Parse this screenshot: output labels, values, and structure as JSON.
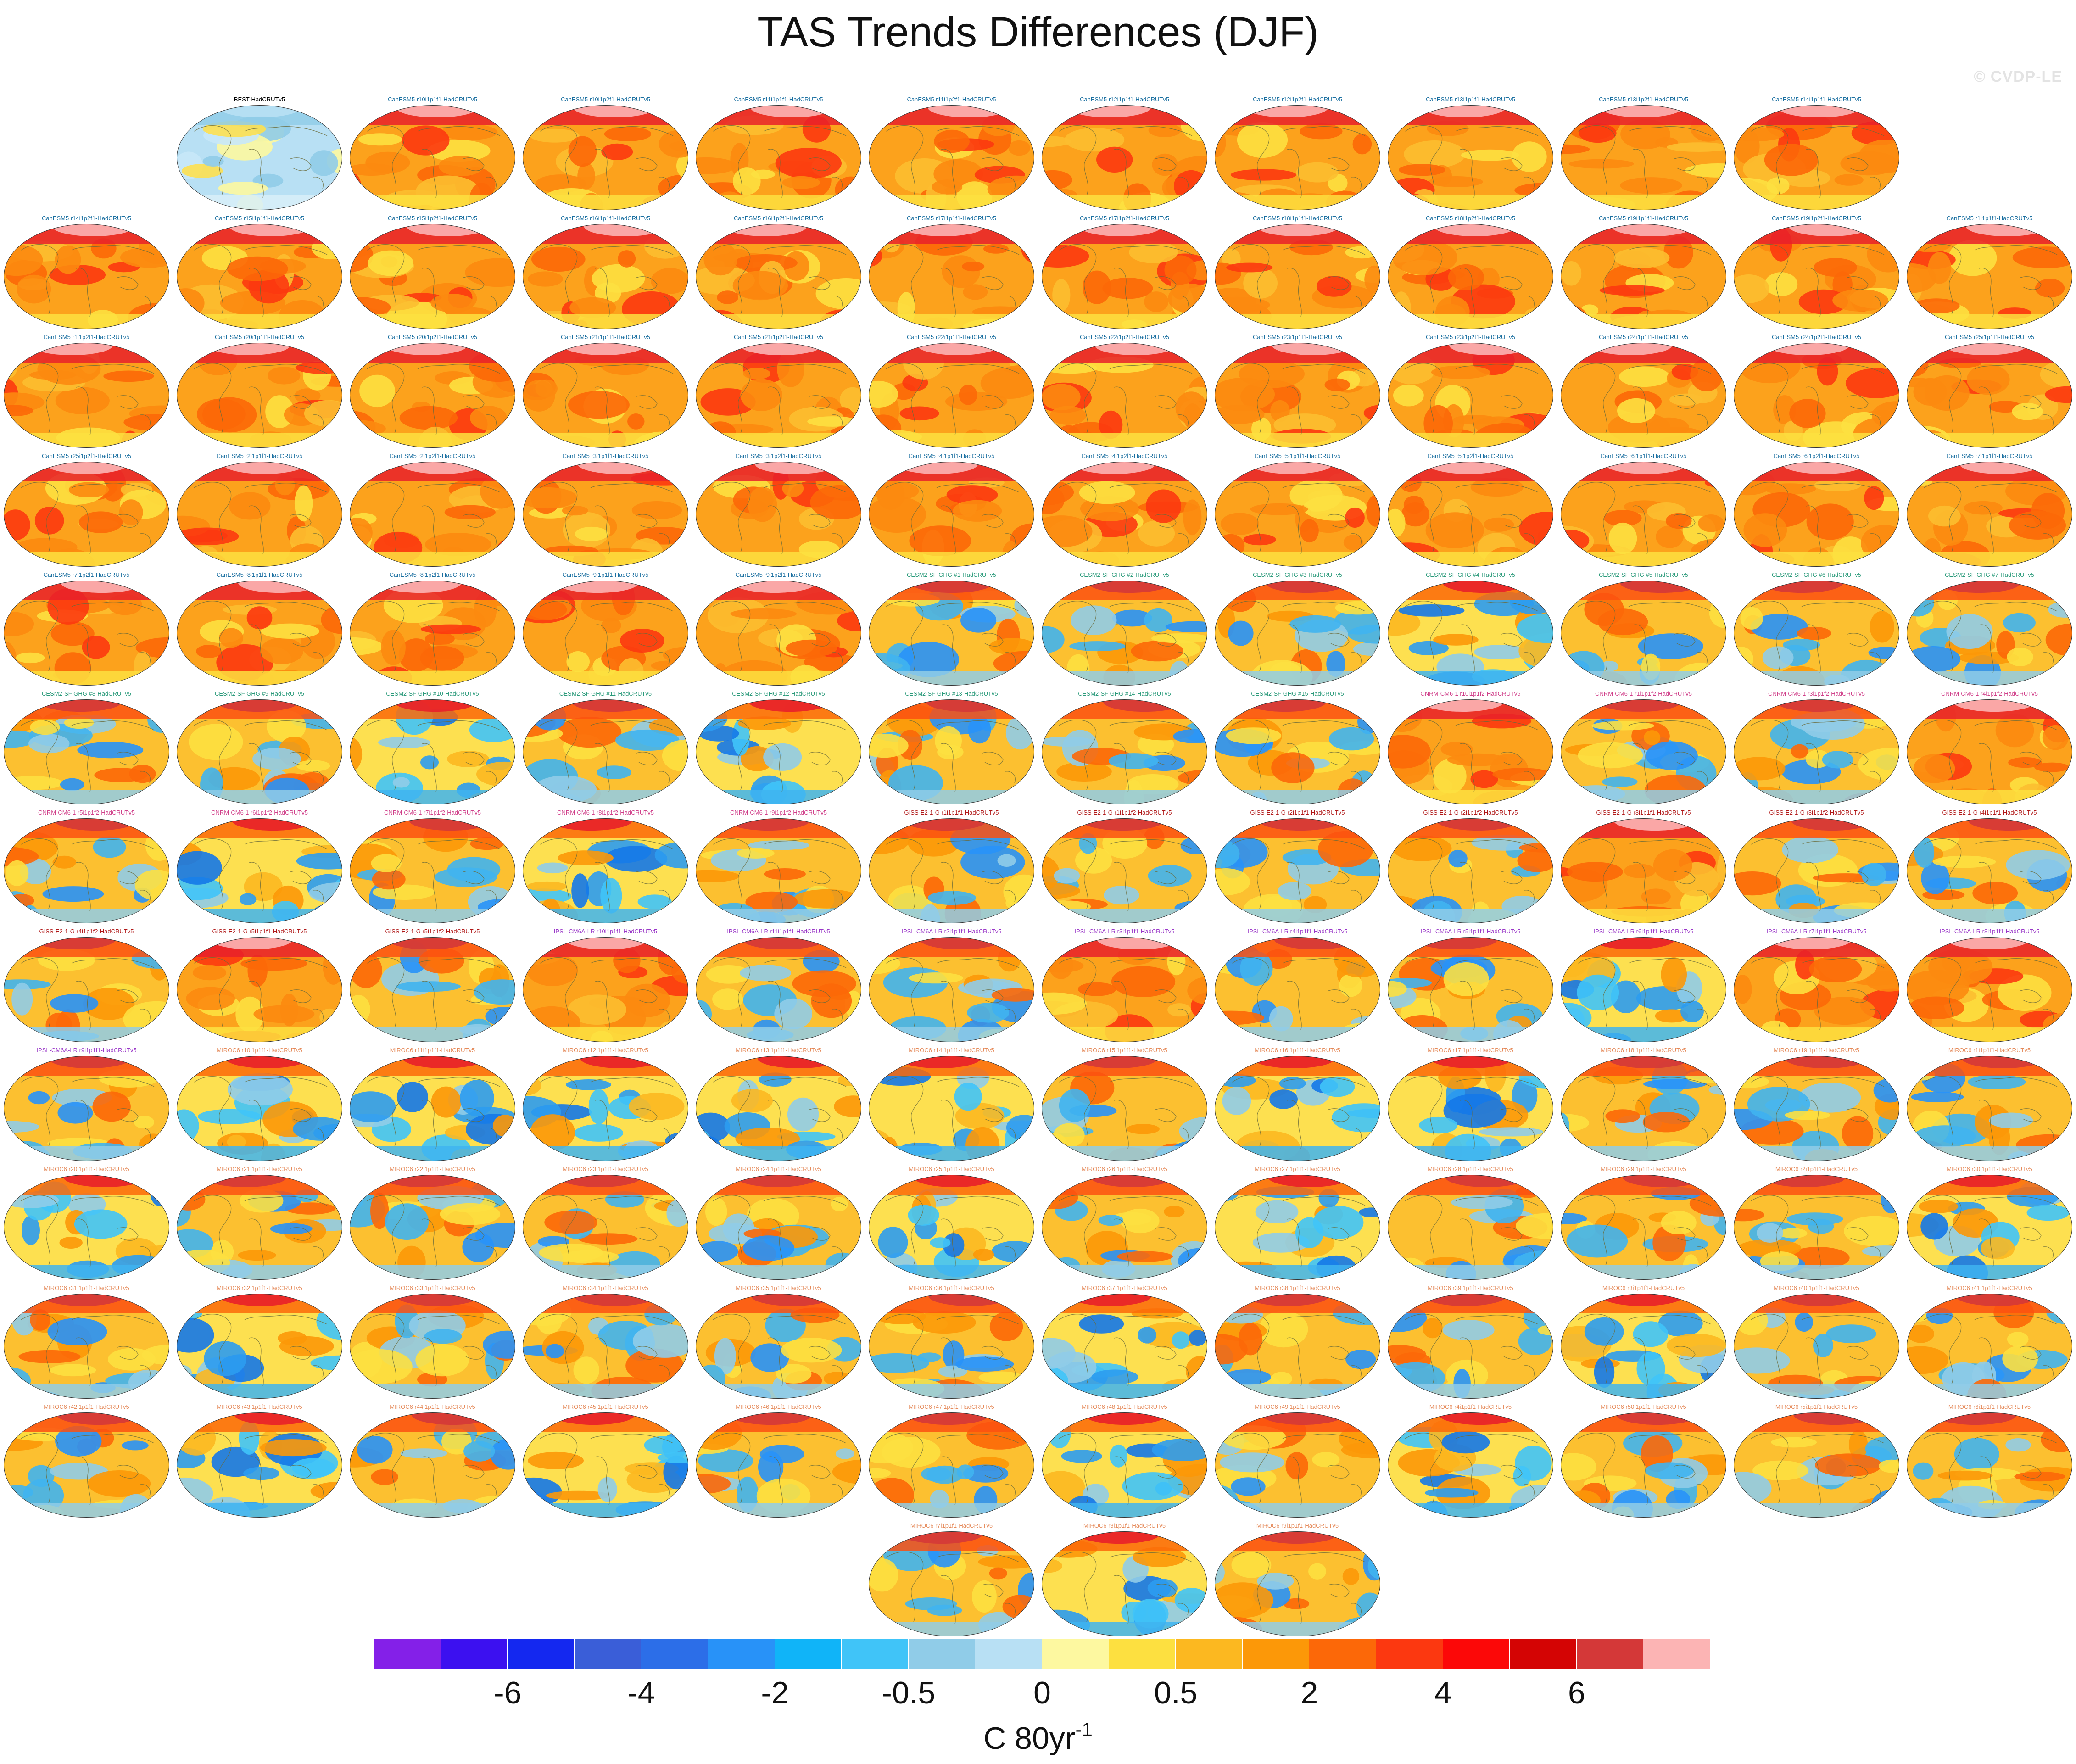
{
  "title": "TAS Trends Differences (DJF)",
  "watermark": "© CVDP-LE",
  "colorbar": {
    "colors": [
      "#8420e8",
      "#3c10f0",
      "#1428f0",
      "#3a5ed8",
      "#2c6ee8",
      "#2892f8",
      "#10b4f8",
      "#40c4f8",
      "#90cce8",
      "#b8e0f4",
      "#fdf8a0",
      "#fde040",
      "#fcb820",
      "#fc9808",
      "#fc6808",
      "#fc3810",
      "#fc0808",
      "#d40404",
      "#d43838",
      "#fcb4b4"
    ],
    "tick_labels": [
      "-6",
      "-4",
      "-2",
      "-0.5",
      "0",
      "0.5",
      "2",
      "4",
      "6"
    ],
    "units_base": "C 80yr",
    "units_exp": "-1"
  },
  "panels": [
    {
      "label": "BEST-HadCRUTv5",
      "group": "obs",
      "style": "obs"
    },
    {
      "label": "CanESM5 r10i1p1f1-HadCRUTv5",
      "group": "CanESM5",
      "style": "warm"
    },
    {
      "label": "CanESM5 r10i1p2f1-HadCRUTv5",
      "group": "CanESM5",
      "style": "warm"
    },
    {
      "label": "CanESM5 r11i1p1f1-HadCRUTv5",
      "group": "CanESM5",
      "style": "warm"
    },
    {
      "label": "CanESM5 r11i1p2f1-HadCRUTv5",
      "group": "CanESM5",
      "style": "warm"
    },
    {
      "label": "CanESM5 r12i1p1f1-HadCRUTv5",
      "group": "CanESM5",
      "style": "warm"
    },
    {
      "label": "CanESM5 r12i1p2f1-HadCRUTv5",
      "group": "CanESM5",
      "style": "warm"
    },
    {
      "label": "CanESM5 r13i1p1f1-HadCRUTv5",
      "group": "CanESM5",
      "style": "warm"
    },
    {
      "label": "CanESM5 r13i1p2f1-HadCRUTv5",
      "group": "CanESM5",
      "style": "warm"
    },
    {
      "label": "CanESM5 r14i1p1f1-HadCRUTv5",
      "group": "CanESM5",
      "style": "warm"
    },
    {
      "label": "CanESM5 r14i1p2f1-HadCRUTv5",
      "group": "CanESM5",
      "style": "warm"
    },
    {
      "label": "CanESM5 r15i1p1f1-HadCRUTv5",
      "group": "CanESM5",
      "style": "warm"
    },
    {
      "label": "CanESM5 r15i1p2f1-HadCRUTv5",
      "group": "CanESM5",
      "style": "warm"
    },
    {
      "label": "CanESM5 r16i1p1f1-HadCRUTv5",
      "group": "CanESM5",
      "style": "warm"
    },
    {
      "label": "CanESM5 r16i1p2f1-HadCRUTv5",
      "group": "CanESM5",
      "style": "warm"
    },
    {
      "label": "CanESM5 r17i1p1f1-HadCRUTv5",
      "group": "CanESM5",
      "style": "warm"
    },
    {
      "label": "CanESM5 r17i1p2f1-HadCRUTv5",
      "group": "CanESM5",
      "style": "warm"
    },
    {
      "label": "CanESM5 r18i1p1f1-HadCRUTv5",
      "group": "CanESM5",
      "style": "warm"
    },
    {
      "label": "CanESM5 r18i1p2f1-HadCRUTv5",
      "group": "CanESM5",
      "style": "warm"
    },
    {
      "label": "CanESM5 r19i1p1f1-HadCRUTv5",
      "group": "CanESM5",
      "style": "warm"
    },
    {
      "label": "CanESM5 r19i1p2f1-HadCRUTv5",
      "group": "CanESM5",
      "style": "warm"
    },
    {
      "label": "CanESM5 r1i1p1f1-HadCRUTv5",
      "group": "CanESM5",
      "style": "warm"
    },
    {
      "label": "CanESM5 r1i1p2f1-HadCRUTv5",
      "group": "CanESM5",
      "style": "warm"
    },
    {
      "label": "CanESM5 r20i1p1f1-HadCRUTv5",
      "group": "CanESM5",
      "style": "warm"
    },
    {
      "label": "CanESM5 r20i1p2f1-HadCRUTv5",
      "group": "CanESM5",
      "style": "warm"
    },
    {
      "label": "CanESM5 r21i1p1f1-HadCRUTv5",
      "group": "CanESM5",
      "style": "warm"
    },
    {
      "label": "CanESM5 r21i1p2f1-HadCRUTv5",
      "group": "CanESM5",
      "style": "warm"
    },
    {
      "label": "CanESM5 r22i1p1f1-HadCRUTv5",
      "group": "CanESM5",
      "style": "warm"
    },
    {
      "label": "CanESM5 r22i1p2f1-HadCRUTv5",
      "group": "CanESM5",
      "style": "warm"
    },
    {
      "label": "CanESM5 r23i1p1f1-HadCRUTv5",
      "group": "CanESM5",
      "style": "warm"
    },
    {
      "label": "CanESM5 r23i1p2f1-HadCRUTv5",
      "group": "CanESM5",
      "style": "warm"
    },
    {
      "label": "CanESM5 r24i1p1f1-HadCRUTv5",
      "group": "CanESM5",
      "style": "warm"
    },
    {
      "label": "CanESM5 r24i1p2f1-HadCRUTv5",
      "group": "CanESM5",
      "style": "warm"
    },
    {
      "label": "CanESM5 r25i1p1f1-HadCRUTv5",
      "group": "CanESM5",
      "style": "warm"
    },
    {
      "label": "CanESM5 r25i1p2f1-HadCRUTv5",
      "group": "CanESM5",
      "style": "warm"
    },
    {
      "label": "CanESM5 r2i1p1f1-HadCRUTv5",
      "group": "CanESM5",
      "style": "warm"
    },
    {
      "label": "CanESM5 r2i1p2f1-HadCRUTv5",
      "group": "CanESM5",
      "style": "warm"
    },
    {
      "label": "CanESM5 r3i1p1f1-HadCRUTv5",
      "group": "CanESM5",
      "style": "warm"
    },
    {
      "label": "CanESM5 r3i1p2f1-HadCRUTv5",
      "group": "CanESM5",
      "style": "warm"
    },
    {
      "label": "CanESM5 r4i1p1f1-HadCRUTv5",
      "group": "CanESM5",
      "style": "warm"
    },
    {
      "label": "CanESM5 r4i1p2f1-HadCRUTv5",
      "group": "CanESM5",
      "style": "warm"
    },
    {
      "label": "CanESM5 r5i1p1f1-HadCRUTv5",
      "group": "CanESM5",
      "style": "warm"
    },
    {
      "label": "CanESM5 r5i1p2f1-HadCRUTv5",
      "group": "CanESM5",
      "style": "warm"
    },
    {
      "label": "CanESM5 r6i1p1f1-HadCRUTv5",
      "group": "CanESM5",
      "style": "warm"
    },
    {
      "label": "CanESM5 r6i1p2f1-HadCRUTv5",
      "group": "CanESM5",
      "style": "warm"
    },
    {
      "label": "CanESM5 r7i1p1f1-HadCRUTv5",
      "group": "CanESM5",
      "style": "warm"
    },
    {
      "label": "CanESM5 r7i1p2f1-HadCRUTv5",
      "group": "CanESM5",
      "style": "warm"
    },
    {
      "label": "CanESM5 r8i1p1f1-HadCRUTv5",
      "group": "CanESM5",
      "style": "warm"
    },
    {
      "label": "CanESM5 r8i1p2f1-HadCRUTv5",
      "group": "CanESM5",
      "style": "warm"
    },
    {
      "label": "CanESM5 r9i1p1f1-HadCRUTv5",
      "group": "CanESM5",
      "style": "warm"
    },
    {
      "label": "CanESM5 r9i1p2f1-HadCRUTv5",
      "group": "CanESM5",
      "style": "warm"
    },
    {
      "label": "CESM2-SF GHG #1-HadCRUTv5",
      "group": "CESM2-SF-GHG",
      "style": "mixed"
    },
    {
      "label": "CESM2-SF GHG #2-HadCRUTv5",
      "group": "CESM2-SF-GHG",
      "style": "mixed"
    },
    {
      "label": "CESM2-SF GHG #3-HadCRUTv5",
      "group": "CESM2-SF-GHG",
      "style": "mixed"
    },
    {
      "label": "CESM2-SF GHG #4-HadCRUTv5",
      "group": "CESM2-SF-GHG",
      "style": "cool"
    },
    {
      "label": "CESM2-SF GHG #5-HadCRUTv5",
      "group": "CESM2-SF-GHG",
      "style": "mixed"
    },
    {
      "label": "CESM2-SF GHG #6-HadCRUTv5",
      "group": "CESM2-SF-GHG",
      "style": "mixed"
    },
    {
      "label": "CESM2-SF GHG #7-HadCRUTv5",
      "group": "CESM2-SF-GHG",
      "style": "mixed"
    },
    {
      "label": "CESM2-SF GHG #8-HadCRUTv5",
      "group": "CESM2-SF-GHG",
      "style": "mixed"
    },
    {
      "label": "CESM2-SF GHG #9-HadCRUTv5",
      "group": "CESM2-SF-GHG",
      "style": "mixed"
    },
    {
      "label": "CESM2-SF GHG #10-HadCRUTv5",
      "group": "CESM2-SF-GHG",
      "style": "cool"
    },
    {
      "label": "CESM2-SF GHG #11-HadCRUTv5",
      "group": "CESM2-SF-GHG",
      "style": "mixed"
    },
    {
      "label": "CESM2-SF GHG #12-HadCRUTv5",
      "group": "CESM2-SF-GHG",
      "style": "cool"
    },
    {
      "label": "CESM2-SF GHG #13-HadCRUTv5",
      "group": "CESM2-SF-GHG",
      "style": "mixed"
    },
    {
      "label": "CESM2-SF GHG #14-HadCRUTv5",
      "group": "CESM2-SF-GHG",
      "style": "mixed"
    },
    {
      "label": "CESM2-SF GHG #15-HadCRUTv5",
      "group": "CESM2-SF-GHG",
      "style": "mixed"
    },
    {
      "label": "CNRM-CM6-1 r10i1p1f2-HadCRUTv5",
      "group": "CNRM-CM6-1",
      "style": "warm"
    },
    {
      "label": "CNRM-CM6-1 r1i1p1f2-HadCRUTv5",
      "group": "CNRM-CM6-1",
      "style": "mixed"
    },
    {
      "label": "CNRM-CM6-1 r3i1p1f2-HadCRUTv5",
      "group": "CNRM-CM6-1",
      "style": "mixed"
    },
    {
      "label": "CNRM-CM6-1 r4i1p1f2-HadCRUTv5",
      "group": "CNRM-CM6-1",
      "style": "warm"
    },
    {
      "label": "CNRM-CM6-1 r5i1p1f2-HadCRUTv5",
      "group": "CNRM-CM6-1",
      "style": "mixed"
    },
    {
      "label": "CNRM-CM6-1 r6i1p1f2-HadCRUTv5",
      "group": "CNRM-CM6-1",
      "style": "cool"
    },
    {
      "label": "CNRM-CM6-1 r7i1p1f2-HadCRUTv5",
      "group": "CNRM-CM6-1",
      "style": "mixed"
    },
    {
      "label": "CNRM-CM6-1 r8i1p1f2-HadCRUTv5",
      "group": "CNRM-CM6-1",
      "style": "cool"
    },
    {
      "label": "CNRM-CM6-1 r9i1p1f2-HadCRUTv5",
      "group": "CNRM-CM6-1",
      "style": "mixed"
    },
    {
      "label": "GISS-E2-1-G r1i1p1f1-HadCRUTv5",
      "group": "GISS-E2-1-G",
      "style": "mixed"
    },
    {
      "label": "GISS-E2-1-G r1i1p1f2-HadCRUTv5",
      "group": "GISS-E2-1-G",
      "style": "mixed"
    },
    {
      "label": "GISS-E2-1-G r2i1p1f1-HadCRUTv5",
      "group": "GISS-E2-1-G",
      "style": "mixed"
    },
    {
      "label": "GISS-E2-1-G r2i1p1f2-HadCRUTv5",
      "group": "GISS-E2-1-G",
      "style": "mixed"
    },
    {
      "label": "GISS-E2-1-G r3i1p1f1-HadCRUTv5",
      "group": "GISS-E2-1-G",
      "style": "warm"
    },
    {
      "label": "GISS-E2-1-G r3i1p1f2-HadCRUTv5",
      "group": "GISS-E2-1-G",
      "style": "mixed"
    },
    {
      "label": "GISS-E2-1-G r4i1p1f1-HadCRUTv5",
      "group": "GISS-E2-1-G",
      "style": "mixed"
    },
    {
      "label": "GISS-E2-1-G r4i1p1f2-HadCRUTv5",
      "group": "GISS-E2-1-G",
      "style": "mixed"
    },
    {
      "label": "GISS-E2-1-G r5i1p1f1-HadCRUTv5",
      "group": "GISS-E2-1-G",
      "style": "warm"
    },
    {
      "label": "GISS-E2-1-G r5i1p1f2-HadCRUTv5",
      "group": "GISS-E2-1-G",
      "style": "mixed"
    },
    {
      "label": "IPSL-CM6A-LR r10i1p1f1-HadCRUTv5",
      "group": "IPSL-CM6A-LR",
      "style": "warm"
    },
    {
      "label": "IPSL-CM6A-LR r11i1p1f1-HadCRUTv5",
      "group": "IPSL-CM6A-LR",
      "style": "mixed"
    },
    {
      "label": "IPSL-CM6A-LR r2i1p1f1-HadCRUTv5",
      "group": "IPSL-CM6A-LR",
      "style": "mixed"
    },
    {
      "label": "IPSL-CM6A-LR r3i1p1f1-HadCRUTv5",
      "group": "IPSL-CM6A-LR",
      "style": "warm"
    },
    {
      "label": "IPSL-CM6A-LR r4i1p1f1-HadCRUTv5",
      "group": "IPSL-CM6A-LR",
      "style": "mixed"
    },
    {
      "label": "IPSL-CM6A-LR r5i1p1f1-HadCRUTv5",
      "group": "IPSL-CM6A-LR",
      "style": "mixed"
    },
    {
      "label": "IPSL-CM6A-LR r6i1p1f1-HadCRUTv5",
      "group": "IPSL-CM6A-LR",
      "style": "cool"
    },
    {
      "label": "IPSL-CM6A-LR r7i1p1f1-HadCRUTv5",
      "group": "IPSL-CM6A-LR",
      "style": "warm"
    },
    {
      "label": "IPSL-CM6A-LR r8i1p1f1-HadCRUTv5",
      "group": "IPSL-CM6A-LR",
      "style": "warm"
    },
    {
      "label": "IPSL-CM6A-LR r9i1p1f1-HadCRUTv5",
      "group": "IPSL-CM6A-LR",
      "style": "mixed"
    },
    {
      "label": "MIROC6 r10i1p1f1-HadCRUTv5",
      "group": "MIROC6",
      "style": "cool"
    },
    {
      "label": "MIROC6 r11i1p1f1-HadCRUTv5",
      "group": "MIROC6",
      "style": "cool"
    },
    {
      "label": "MIROC6 r12i1p1f1-HadCRUTv5",
      "group": "MIROC6",
      "style": "cool"
    },
    {
      "label": "MIROC6 r13i1p1f1-HadCRUTv5",
      "group": "MIROC6",
      "style": "cool"
    },
    {
      "label": "MIROC6 r14i1p1f1-HadCRUTv5",
      "group": "MIROC6",
      "style": "cool"
    },
    {
      "label": "MIROC6 r15i1p1f1-HadCRUTv5",
      "group": "MIROC6",
      "style": "mixed"
    },
    {
      "label": "MIROC6 r16i1p1f1-HadCRUTv5",
      "group": "MIROC6",
      "style": "cool"
    },
    {
      "label": "MIROC6 r17i1p1f1-HadCRUTv5",
      "group": "MIROC6",
      "style": "cool"
    },
    {
      "label": "MIROC6 r18i1p1f1-HadCRUTv5",
      "group": "MIROC6",
      "style": "mixed"
    },
    {
      "label": "MIROC6 r19i1p1f1-HadCRUTv5",
      "group": "MIROC6",
      "style": "mixed"
    },
    {
      "label": "MIROC6 r1i1p1f1-HadCRUTv5",
      "group": "MIROC6",
      "style": "mixed"
    },
    {
      "label": "MIROC6 r20i1p1f1-HadCRUTv5",
      "group": "MIROC6",
      "style": "cool"
    },
    {
      "label": "MIROC6 r21i1p1f1-HadCRUTv5",
      "group": "MIROC6",
      "style": "mixed"
    },
    {
      "label": "MIROC6 r22i1p1f1-HadCRUTv5",
      "group": "MIROC6",
      "style": "mixed"
    },
    {
      "label": "MIROC6 r23i1p1f1-HadCRUTv5",
      "group": "MIROC6",
      "style": "mixed"
    },
    {
      "label": "MIROC6 r24i1p1f1-HadCRUTv5",
      "group": "MIROC6",
      "style": "mixed"
    },
    {
      "label": "MIROC6 r25i1p1f1-HadCRUTv5",
      "group": "MIROC6",
      "style": "cool"
    },
    {
      "label": "MIROC6 r26i1p1f1-HadCRUTv5",
      "group": "MIROC6",
      "style": "mixed"
    },
    {
      "label": "MIROC6 r27i1p1f1-HadCRUTv5",
      "group": "MIROC6",
      "style": "cool"
    },
    {
      "label": "MIROC6 r28i1p1f1-HadCRUTv5",
      "group": "MIROC6",
      "style": "mixed"
    },
    {
      "label": "MIROC6 r29i1p1f1-HadCRUTv5",
      "group": "MIROC6",
      "style": "mixed"
    },
    {
      "label": "MIROC6 r2i1p1f1-HadCRUTv5",
      "group": "MIROC6",
      "style": "mixed"
    },
    {
      "label": "MIROC6 r30i1p1f1-HadCRUTv5",
      "group": "MIROC6",
      "style": "cool"
    },
    {
      "label": "MIROC6 r31i1p1f1-HadCRUTv5",
      "group": "MIROC6",
      "style": "mixed"
    },
    {
      "label": "MIROC6 r32i1p1f1-HadCRUTv5",
      "group": "MIROC6",
      "style": "cool"
    },
    {
      "label": "MIROC6 r33i1p1f1-HadCRUTv5",
      "group": "MIROC6",
      "style": "mixed"
    },
    {
      "label": "MIROC6 r34i1p1f1-HadCRUTv5",
      "group": "MIROC6",
      "style": "mixed"
    },
    {
      "label": "MIROC6 r35i1p1f1-HadCRUTv5",
      "group": "MIROC6",
      "style": "mixed"
    },
    {
      "label": "MIROC6 r36i1p1f1-HadCRUTv5",
      "group": "MIROC6",
      "style": "mixed"
    },
    {
      "label": "MIROC6 r37i1p1f1-HadCRUTv5",
      "group": "MIROC6",
      "style": "cool"
    },
    {
      "label": "MIROC6 r38i1p1f1-HadCRUTv5",
      "group": "MIROC6",
      "style": "mixed"
    },
    {
      "label": "MIROC6 r39i1p1f1-HadCRUTv5",
      "group": "MIROC6",
      "style": "mixed"
    },
    {
      "label": "MIROC6 r3i1p1f1-HadCRUTv5",
      "group": "MIROC6",
      "style": "cool"
    },
    {
      "label": "MIROC6 r40i1p1f1-HadCRUTv5",
      "group": "MIROC6",
      "style": "mixed"
    },
    {
      "label": "MIROC6 r41i1p1f1-HadCRUTv5",
      "group": "MIROC6",
      "style": "mixed"
    },
    {
      "label": "MIROC6 r42i1p1f1-HadCRUTv5",
      "group": "MIROC6",
      "style": "mixed"
    },
    {
      "label": "MIROC6 r43i1p1f1-HadCRUTv5",
      "group": "MIROC6",
      "style": "cool"
    },
    {
      "label": "MIROC6 r44i1p1f1-HadCRUTv5",
      "group": "MIROC6",
      "style": "mixed"
    },
    {
      "label": "MIROC6 r45i1p1f1-HadCRUTv5",
      "group": "MIROC6",
      "style": "cool"
    },
    {
      "label": "MIROC6 r46i1p1f1-HadCRUTv5",
      "group": "MIROC6",
      "style": "mixed"
    },
    {
      "label": "MIROC6 r47i1p1f1-HadCRUTv5",
      "group": "MIROC6",
      "style": "mixed"
    },
    {
      "label": "MIROC6 r48i1p1f1-HadCRUTv5",
      "group": "MIROC6",
      "style": "cool"
    },
    {
      "label": "MIROC6 r49i1p1f1-HadCRUTv5",
      "group": "MIROC6",
      "style": "mixed"
    },
    {
      "label": "MIROC6 r4i1p1f1-HadCRUTv5",
      "group": "MIROC6",
      "style": "cool"
    },
    {
      "label": "MIROC6 r50i1p1f1-HadCRUTv5",
      "group": "MIROC6",
      "style": "mixed"
    },
    {
      "label": "MIROC6 r5i1p1f1-HadCRUTv5",
      "group": "MIROC6",
      "style": "mixed"
    },
    {
      "label": "MIROC6 r6i1p1f1-HadCRUTv5",
      "group": "MIROC6",
      "style": "mixed"
    },
    {
      "label": "MIROC6 r7i1p1f1-HadCRUTv5",
      "group": "MIROC6",
      "style": "mixed"
    },
    {
      "label": "MIROC6 r8i1p1f1-HadCRUTv5",
      "group": "MIROC6",
      "style": "cool"
    },
    {
      "label": "MIROC6 r9i1p1f1-HadCRUTv5",
      "group": "MIROC6",
      "style": "mixed"
    }
  ]
}
